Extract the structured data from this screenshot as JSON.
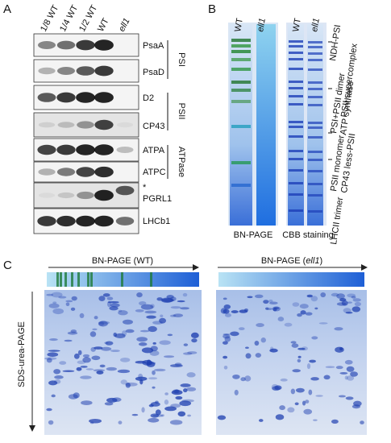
{
  "panel_labels": [
    "A",
    "B",
    "C"
  ],
  "panel_a": {
    "lanes": [
      "1/8 WT",
      "1/4 WT",
      "1/2 WT",
      "WT",
      "ell1"
    ],
    "blots": [
      "PsaA",
      "PsaD",
      "D2",
      "CP43",
      "ATPA",
      "ATPC",
      "PGRL1",
      "LHCb1"
    ],
    "asterisk": "*",
    "groups": [
      "PSI",
      "PSII",
      "ATPase"
    ]
  },
  "panel_b": {
    "lanes": [
      "WT",
      "ell1",
      "WT",
      "ell1"
    ],
    "bands": [
      "NDH-PSI",
      "PSII supercomplex",
      "PSI+PSII dimer",
      "ATP synthase",
      "PSII monomer",
      "CP43 less-PSII",
      "LHCII trimer"
    ],
    "captions": [
      "BN-PAGE",
      "CBB staining"
    ]
  },
  "panel_c": {
    "first_dimension": [
      {
        "prefix": "BN-PAGE (",
        "strain": "WT",
        "suffix": ")"
      },
      {
        "prefix": "BN-PAGE (",
        "strain": "ell1",
        "suffix": ")"
      }
    ],
    "second_dimension": "SDS-urea-PAGE"
  }
}
